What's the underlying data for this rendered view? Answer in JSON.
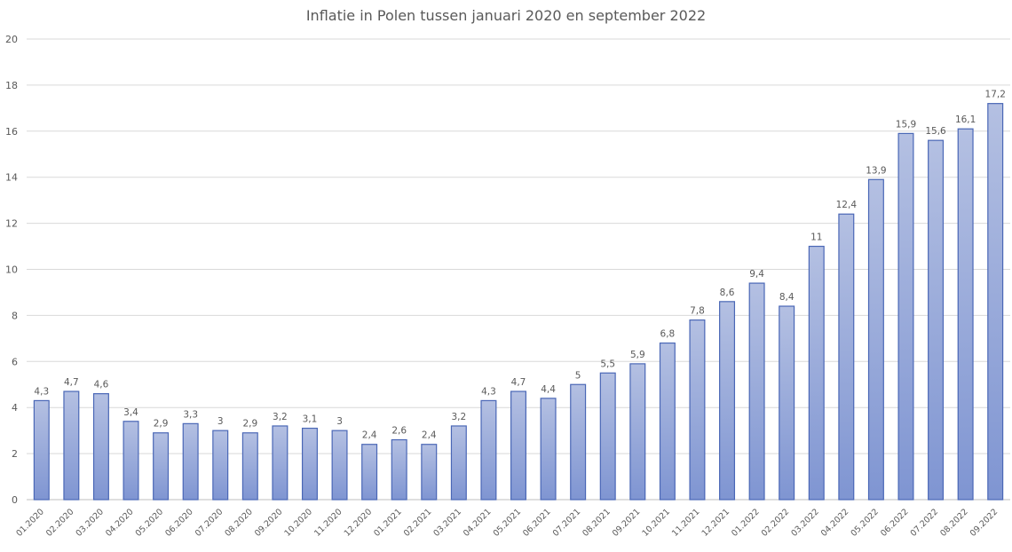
{
  "chart_data": {
    "type": "bar",
    "title": "Inflatie in Polen tussen januari 2020 en september 2022",
    "xlabel": "",
    "ylabel": "",
    "ylim": [
      0,
      20
    ],
    "yticks": [
      0,
      2,
      4,
      6,
      8,
      10,
      12,
      14,
      16,
      18,
      20
    ],
    "grid": true,
    "legend": "none",
    "bar_fill_top": "#b4c0e2",
    "bar_fill_bottom": "#7f95d2",
    "bar_stroke": "#4a67b6",
    "categories": [
      "01.2020",
      "02.2020",
      "03.2020",
      "04.2020",
      "05.2020",
      "06.2020",
      "07.2020",
      "08.2020",
      "09.2020",
      "10.2020",
      "11.2020",
      "12.2020",
      "01.2021",
      "02.2021",
      "03.2021",
      "04.2021",
      "05.2021",
      "06.2021",
      "07.2021",
      "08.2021",
      "09.2021",
      "10.2021",
      "11.2021",
      "12.2021",
      "01.2022",
      "02.2022",
      "03.2022",
      "04.2022",
      "05.2022",
      "06.2022",
      "07.2022",
      "08.2022",
      "09.2022"
    ],
    "values": [
      4.3,
      4.7,
      4.6,
      3.4,
      2.9,
      3.3,
      3.0,
      2.9,
      3.2,
      3.1,
      3.0,
      2.4,
      2.6,
      2.4,
      3.2,
      4.3,
      4.7,
      4.4,
      5.0,
      5.5,
      5.9,
      6.8,
      7.8,
      8.6,
      9.4,
      8.4,
      11.0,
      12.4,
      13.9,
      15.9,
      15.6,
      16.1,
      17.2
    ],
    "data_labels": [
      "4,3",
      "4,7",
      "4,6",
      "3,4",
      "2,9",
      "3,3",
      "3",
      "2,9",
      "3,2",
      "3,1",
      "3",
      "2,4",
      "2,6",
      "2,4",
      "3,2",
      "4,3",
      "4,7",
      "4,4",
      "5",
      "5,5",
      "5,9",
      "6,8",
      "7,8",
      "8,6",
      "9,4",
      "8,4",
      "11",
      "12,4",
      "13,9",
      "15,9",
      "15,6",
      "16,1",
      "17,2"
    ]
  }
}
